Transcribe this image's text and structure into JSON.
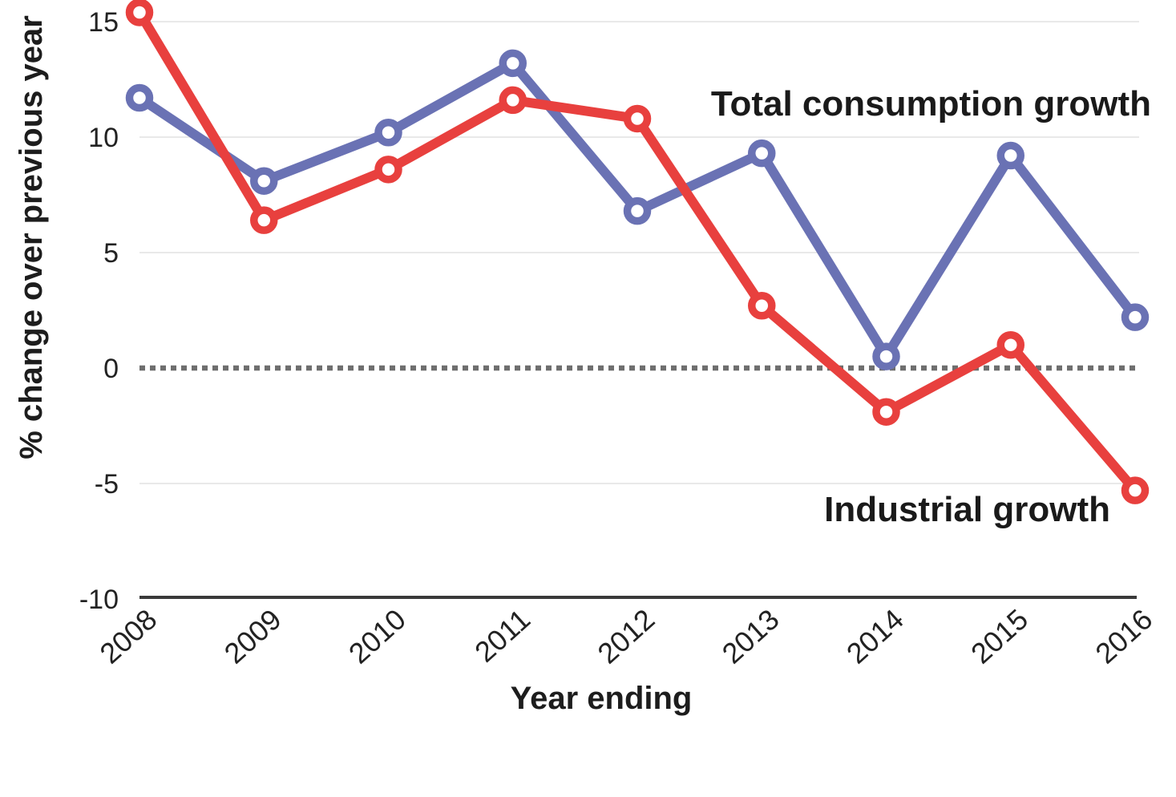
{
  "chart_data": {
    "type": "line",
    "x": [
      2008,
      2009,
      2010,
      2011,
      2012,
      2013,
      2014,
      2015,
      2016
    ],
    "series": [
      {
        "name": "Total consumption growth",
        "color": "#6a72b4",
        "values": [
          11.7,
          8.1,
          10.2,
          13.2,
          6.8,
          9.3,
          0.5,
          9.2,
          2.2
        ]
      },
      {
        "name": "Industrial growth",
        "color": "#e8403e",
        "values": [
          15.4,
          6.4,
          8.6,
          11.6,
          10.8,
          2.7,
          -1.9,
          1.0,
          -5.3
        ]
      }
    ],
    "xlabel": "Year ending",
    "ylabel": "% change over previous year",
    "ylim": [
      -10,
      15
    ],
    "yticks": [
      15,
      10,
      5,
      0,
      -5,
      -10
    ],
    "zero_line_style": "dotted",
    "grid": "horizontal-light",
    "legend_position": "inline-annotations",
    "colors": {
      "grid": "#e9e9e9",
      "zero_line": "#6e6e6e",
      "axis": "#3a3a3a",
      "text": "#1d1d1d",
      "marker_fill": "#ffffff"
    }
  }
}
